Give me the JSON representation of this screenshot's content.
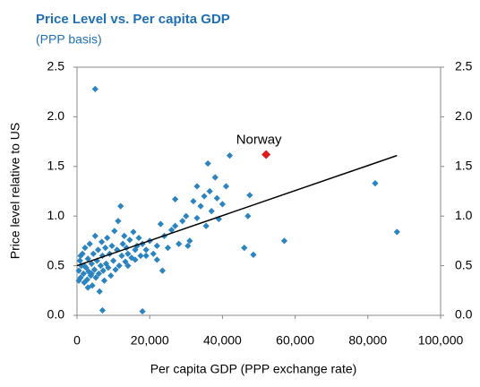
{
  "chart_data": {
    "type": "scatter",
    "title": "Price Level vs. Per capita GDP",
    "subtitle": "(PPP basis)",
    "xlabel": "Per capita GDP (PPP exchange rate)",
    "ylabel": "Price level relative to US",
    "color": "#2b83c0",
    "x": [
      500,
      800,
      1000,
      1200,
      1500,
      1800,
      2000,
      2200,
      2500,
      2800,
      3000,
      3200,
      3500,
      3800,
      4000,
      4200,
      4500,
      4800,
      5000,
      5200,
      5500,
      5800,
      6000,
      6200,
      6500,
      6800,
      7000,
      7200,
      7500,
      7800,
      8000,
      8300,
      8600,
      9000,
      9300,
      9600,
      10000,
      10300,
      10600,
      11000,
      11300,
      11600,
      12000,
      12300,
      12600,
      13000,
      13300,
      13600,
      14000,
      14500,
      15000,
      15500,
      16000,
      16500,
      17000,
      17500,
      18000,
      19000,
      20000,
      21000,
      22000,
      23000,
      23500,
      24000,
      25000,
      26000,
      27000,
      28000,
      29000,
      30000,
      30500,
      31000,
      32000,
      33000,
      34000,
      35000,
      35500,
      36000,
      36500,
      37000,
      38000,
      38500,
      39000,
      40000,
      41000,
      42000,
      46000,
      47000,
      47500,
      48500,
      57000,
      82000,
      88000,
      5000,
      7000,
      18000,
      500,
      1000,
      2000,
      3000,
      4000,
      14000,
      16000,
      19000,
      22000,
      27000,
      33000
    ],
    "values": [
      0.45,
      0.55,
      0.38,
      0.5,
      0.62,
      0.42,
      0.33,
      0.68,
      0.48,
      0.36,
      0.57,
      0.44,
      0.72,
      0.4,
      0.52,
      0.3,
      0.62,
      0.46,
      0.8,
      0.38,
      0.55,
      0.66,
      0.42,
      0.24,
      0.5,
      0.74,
      0.6,
      0.45,
      0.35,
      0.68,
      0.52,
      0.78,
      0.48,
      0.62,
      0.4,
      0.7,
      0.55,
      0.85,
      0.46,
      0.66,
      0.95,
      0.5,
      1.1,
      0.6,
      0.72,
      0.8,
      0.54,
      0.68,
      0.62,
      0.76,
      0.58,
      0.84,
      0.66,
      0.7,
      0.78,
      0.6,
      0.72,
      0.66,
      0.75,
      0.62,
      0.7,
      0.92,
      0.45,
      0.8,
      0.68,
      0.86,
      1.17,
      0.72,
      0.95,
      1.0,
      0.7,
      0.75,
      1.15,
      0.98,
      1.1,
      1.2,
      0.9,
      1.53,
      1.25,
      1.05,
      1.39,
      1.18,
      0.97,
      1.12,
      1.3,
      1.61,
      0.68,
      1.0,
      1.21,
      0.61,
      0.75,
      1.33,
      0.84,
      2.28,
      0.05,
      0.04,
      0.35,
      0.6,
      0.5,
      0.28,
      0.42,
      0.5,
      0.56,
      0.6,
      0.56,
      0.9,
      1.3
    ],
    "highlight": {
      "text": "Norway",
      "x": 52000,
      "y": 1.62,
      "color": "#e31a1c"
    },
    "trendline": {
      "x": [
        0,
        88000
      ],
      "y": [
        0.5,
        1.61
      ],
      "color": "#000000"
    },
    "xlim": [
      0,
      100000
    ],
    "xticks": [
      0,
      {
        "value": 20000,
        "label": "20,000"
      },
      {
        "value": 40000,
        "label": "40,000"
      },
      {
        "value": 60000,
        "label": "60,000"
      },
      {
        "value": 80000,
        "label": "80,000"
      },
      {
        "value": 100000,
        "label": "100,000"
      }
    ],
    "ylim": [
      0,
      2.5
    ],
    "yticks": [
      {
        "value": 0,
        "label": "0.0"
      },
      {
        "value": 0.5,
        "label": "0.5"
      },
      {
        "value": 1,
        "label": "1.0"
      },
      {
        "value": 1.5,
        "label": "1.5"
      },
      {
        "value": 2,
        "label": "2.0"
      },
      {
        "value": 2.5,
        "label": "2.5"
      }
    ],
    "y2lim": [
      0,
      2.5
    ],
    "y2ticks": [
      {
        "value": 0,
        "label": "0.0"
      },
      {
        "value": 0.5,
        "label": "0.5"
      },
      {
        "value": 1,
        "label": "1.0"
      },
      {
        "value": 1.5,
        "label": "1.5"
      },
      {
        "value": 2,
        "label": "2.0"
      },
      {
        "value": 2.5,
        "label": "2.5"
      }
    ]
  }
}
